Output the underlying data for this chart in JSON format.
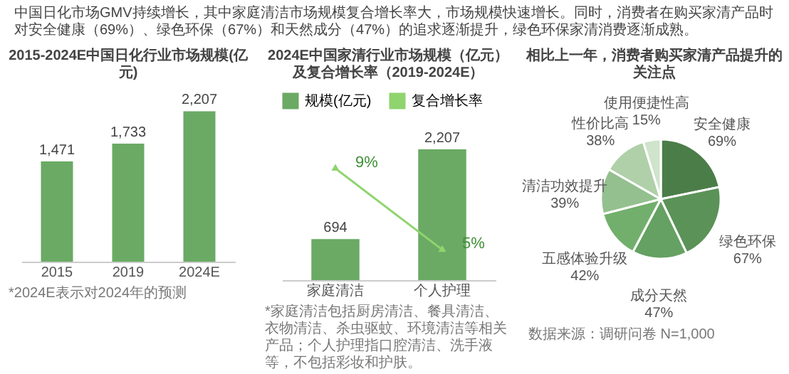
{
  "chart_data": [
    {
      "type": "other",
      "annotations": [
        "中国日化市场GMV持续增长，其中家庭清洁市场规模复合增长率大，市场规模快速增长。同时，消费者在购买家清产品时对安全健康（69%）、绿色环保（67%）和天然成分（47%）的追求逐渐提升，绿色环保家清消费逐渐成熟。"
      ]
    },
    {
      "type": "bar",
      "title": "2015-2024E中国日化行业市场规模(亿元)",
      "categories": [
        "2015",
        "2019",
        "2024E"
      ],
      "values": [
        1471,
        1733,
        2207
      ],
      "value_labels": [
        "1,471",
        "1,733",
        "2,207"
      ],
      "color": "#6aaa64",
      "annotations": [
        "*2024E表示对2024年的预测"
      ]
    },
    {
      "type": "bar",
      "title": "2024E中国家清行业市场规模（亿元）及复合增长率（2019-2024E）",
      "categories": [
        "家庭清洁",
        "个人护理"
      ],
      "series": [
        {
          "name": "规模(亿元)",
          "color": "#6aaa64",
          "values": [
            694,
            2207
          ],
          "value_labels": [
            "694",
            "2,207"
          ]
        },
        {
          "name": "复合增长率",
          "type": "line",
          "axis": "y2",
          "color": "#8fd46e",
          "values": [
            9,
            5
          ],
          "value_labels": [
            "9%",
            "5%"
          ]
        }
      ],
      "legend": "top",
      "marker": "triangle",
      "annotations": [
        "*家庭清洁包括厨房清洁、餐具清洁、衣物清洁、杀虫驱蚊、环境清洁等相关产品；个人护理指口腔清洁、洗手液等，不包括彩妆和护肤。"
      ]
    },
    {
      "type": "pie",
      "title": "相比上一年，消费者购买家清产品提升的关注点",
      "categories": [
        "安全健康",
        "绿色环保",
        "成分天然",
        "五感体验升级",
        "清洁功效提升",
        "性价比高",
        "使用便捷性高"
      ],
      "values": [
        69,
        67,
        47,
        42,
        39,
        38,
        15
      ],
      "value_labels": [
        "69%",
        "67%",
        "47%",
        "42%",
        "39%",
        "38%",
        "15%"
      ],
      "colors": [
        "#4b7d49",
        "#5b9258",
        "#65a162",
        "#72af6c",
        "#94c08f",
        "#afd0a9",
        "#cfe4cb"
      ],
      "annotations": [
        "数据来源：调研问卷 N=1,000"
      ]
    }
  ]
}
